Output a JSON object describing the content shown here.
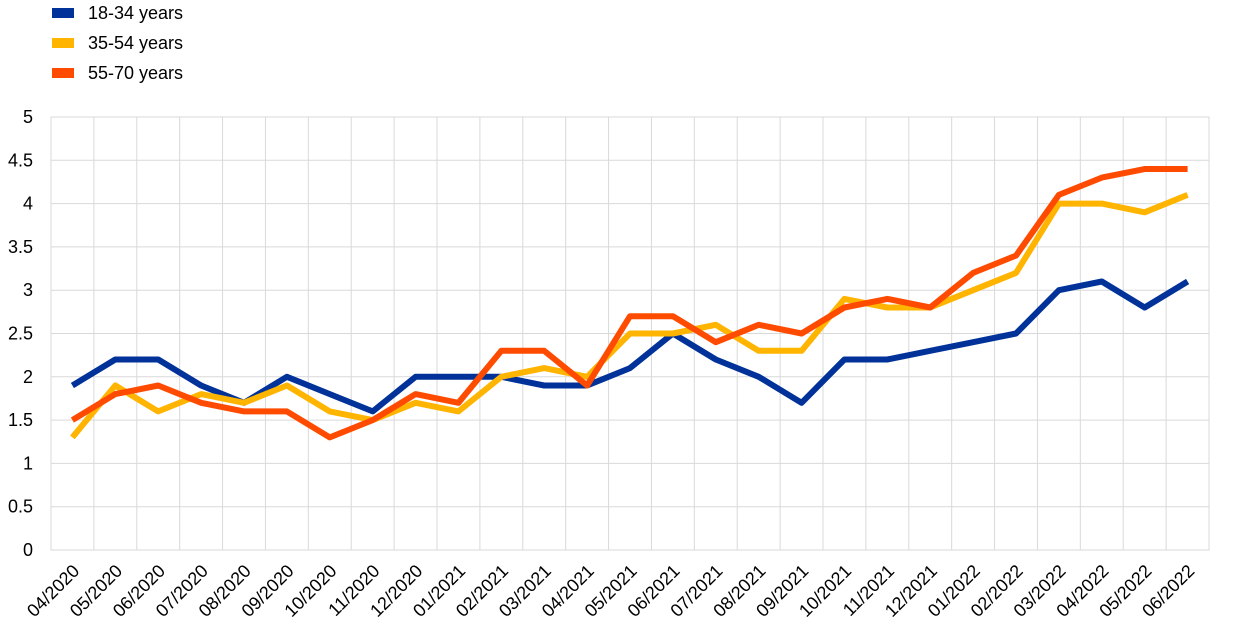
{
  "chart_data": {
    "type": "line",
    "title": "",
    "xlabel": "",
    "ylabel": "",
    "ylim": [
      0,
      5
    ],
    "y_ticks": [
      "0",
      "0.5",
      "1",
      "1.5",
      "2",
      "2.5",
      "3",
      "3.5",
      "4",
      "4.5",
      "5"
    ],
    "y_tick_values": [
      0,
      0.5,
      1,
      1.5,
      2,
      2.5,
      3,
      3.5,
      4,
      4.5,
      5
    ],
    "grid": true,
    "legend_position": "top-left",
    "categories": [
      "04/2020",
      "05/2020",
      "06/2020",
      "07/2020",
      "08/2020",
      "09/2020",
      "10/2020",
      "11/2020",
      "12/2020",
      "01/2021",
      "02/2021",
      "03/2021",
      "04/2021",
      "05/2021",
      "06/2021",
      "07/2021",
      "08/2021",
      "09/2021",
      "10/2021",
      "11/2021",
      "12/2021",
      "01/2022",
      "02/2022",
      "03/2022",
      "04/2022",
      "05/2022",
      "06/2022"
    ],
    "series": [
      {
        "name": "18-34 years",
        "color": "#003299",
        "values": [
          1.9,
          2.2,
          2.2,
          1.9,
          1.7,
          2.0,
          1.8,
          1.6,
          2.0,
          2.0,
          2.0,
          1.9,
          1.9,
          2.1,
          2.5,
          2.2,
          2.0,
          1.7,
          2.2,
          2.2,
          2.3,
          2.4,
          2.5,
          3.0,
          3.1,
          2.8,
          3.1
        ]
      },
      {
        "name": "35-54 years",
        "color": "#FFB400",
        "values": [
          1.3,
          1.9,
          1.6,
          1.8,
          1.7,
          1.9,
          1.6,
          1.5,
          1.7,
          1.6,
          2.0,
          2.1,
          2.0,
          2.5,
          2.5,
          2.6,
          2.3,
          2.3,
          2.9,
          2.8,
          2.8,
          3.0,
          3.2,
          4.0,
          4.0,
          3.9,
          4.1
        ]
      },
      {
        "name": "55-70 years",
        "color": "#FF4B00",
        "values": [
          1.5,
          1.8,
          1.9,
          1.7,
          1.6,
          1.6,
          1.3,
          1.5,
          1.8,
          1.7,
          2.3,
          2.3,
          1.9,
          2.7,
          2.7,
          2.4,
          2.6,
          2.5,
          2.8,
          2.9,
          2.8,
          3.2,
          3.4,
          4.1,
          4.3,
          4.4,
          4.4
        ]
      }
    ]
  }
}
